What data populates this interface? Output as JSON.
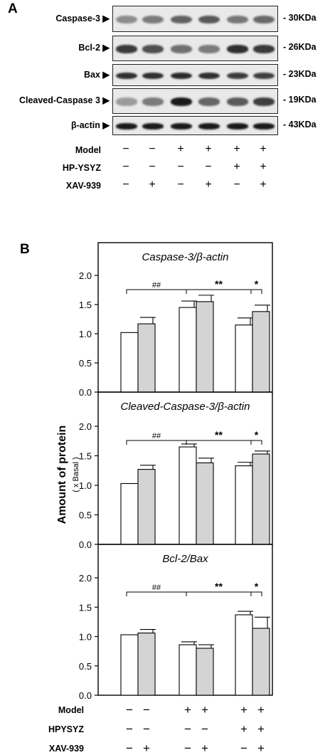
{
  "panel_a": {
    "letter": "A",
    "blots": [
      {
        "name": "Caspase-3",
        "size": "30KDa",
        "bands": [
          0.42,
          0.5,
          0.62,
          0.66,
          0.52,
          0.58
        ]
      },
      {
        "name": "Bcl-2",
        "size": "26KDa",
        "bands": [
          0.8,
          0.7,
          0.55,
          0.5,
          0.85,
          0.8
        ]
      },
      {
        "name": "Bax",
        "size": "23KDa",
        "bands": [
          0.85,
          0.85,
          0.88,
          0.85,
          0.8,
          0.78
        ]
      },
      {
        "name": "Cleaved-Caspase 3",
        "size": "19KDa",
        "bands": [
          0.35,
          0.5,
          0.95,
          0.6,
          0.65,
          0.78
        ]
      },
      {
        "name": "β-actin",
        "size": "43KDa",
        "bands": [
          0.95,
          0.95,
          0.95,
          0.95,
          0.95,
          0.95
        ]
      }
    ],
    "conditions": [
      {
        "name": "Model",
        "signs": [
          "−",
          "−",
          "+",
          "+",
          "+",
          "+"
        ]
      },
      {
        "name": "HP-YSYZ",
        "signs": [
          "−",
          "−",
          "−",
          "−",
          "+",
          "+"
        ]
      },
      {
        "name": "XAV-939",
        "signs": [
          "−",
          "+",
          "−",
          "+",
          "−",
          "+"
        ]
      }
    ]
  },
  "panel_b": {
    "letter": "B",
    "ylabel": "Amount of protein",
    "ylabel_sub": "( x Basal )",
    "conditions": [
      {
        "name": "Model",
        "signs": [
          "−",
          "−",
          "+",
          "+",
          "+",
          "+"
        ]
      },
      {
        "name": "HPYSYZ",
        "signs": [
          "−",
          "−",
          "−",
          "−",
          "+",
          "+"
        ]
      },
      {
        "name": "XAV-939",
        "signs": [
          "−",
          "+",
          "−",
          "+",
          "−",
          "+"
        ]
      }
    ]
  },
  "chart_data": [
    {
      "type": "bar",
      "title": "Caspase-3/β-actin",
      "ylim": [
        0,
        2.0
      ],
      "yticks": [
        "0.0",
        "0.5",
        "1.0",
        "1.5",
        "2.0"
      ],
      "values": [
        1.02,
        1.17,
        1.45,
        1.55,
        1.15,
        1.38
      ],
      "errors": [
        0.0,
        0.11,
        0.11,
        0.11,
        0.12,
        0.11
      ],
      "fills": [
        "#ffffff",
        "#d4d4d4",
        "#ffffff",
        "#d4d4d4",
        "#ffffff",
        "#d4d4d4"
      ],
      "annotations": [
        "##",
        "**",
        "*"
      ]
    },
    {
      "type": "bar",
      "title": "Cleaved-Caspase-3/β-actin",
      "ylim": [
        0,
        2.0
      ],
      "yticks": [
        "0.0",
        "0.5",
        "1.0",
        "1.5",
        "2.0"
      ],
      "values": [
        1.03,
        1.27,
        1.65,
        1.38,
        1.33,
        1.53
      ],
      "errors": [
        0.0,
        0.07,
        0.05,
        0.08,
        0.06,
        0.05
      ],
      "fills": [
        "#ffffff",
        "#d4d4d4",
        "#ffffff",
        "#d4d4d4",
        "#ffffff",
        "#d4d4d4"
      ],
      "annotations": [
        "##",
        "**",
        "*"
      ]
    },
    {
      "type": "bar",
      "title": "Bcl-2/Bax",
      "ylim": [
        0,
        2.0
      ],
      "yticks": [
        "0.0",
        "0.5",
        "1.0",
        "1.5",
        "2.0"
      ],
      "values": [
        1.03,
        1.06,
        0.86,
        0.8,
        1.37,
        1.14
      ],
      "errors": [
        0.0,
        0.06,
        0.05,
        0.06,
        0.06,
        0.19
      ],
      "fills": [
        "#ffffff",
        "#d4d4d4",
        "#ffffff",
        "#d4d4d4",
        "#ffffff",
        "#d4d4d4"
      ],
      "annotations": [
        "##",
        "**",
        "*"
      ]
    }
  ]
}
